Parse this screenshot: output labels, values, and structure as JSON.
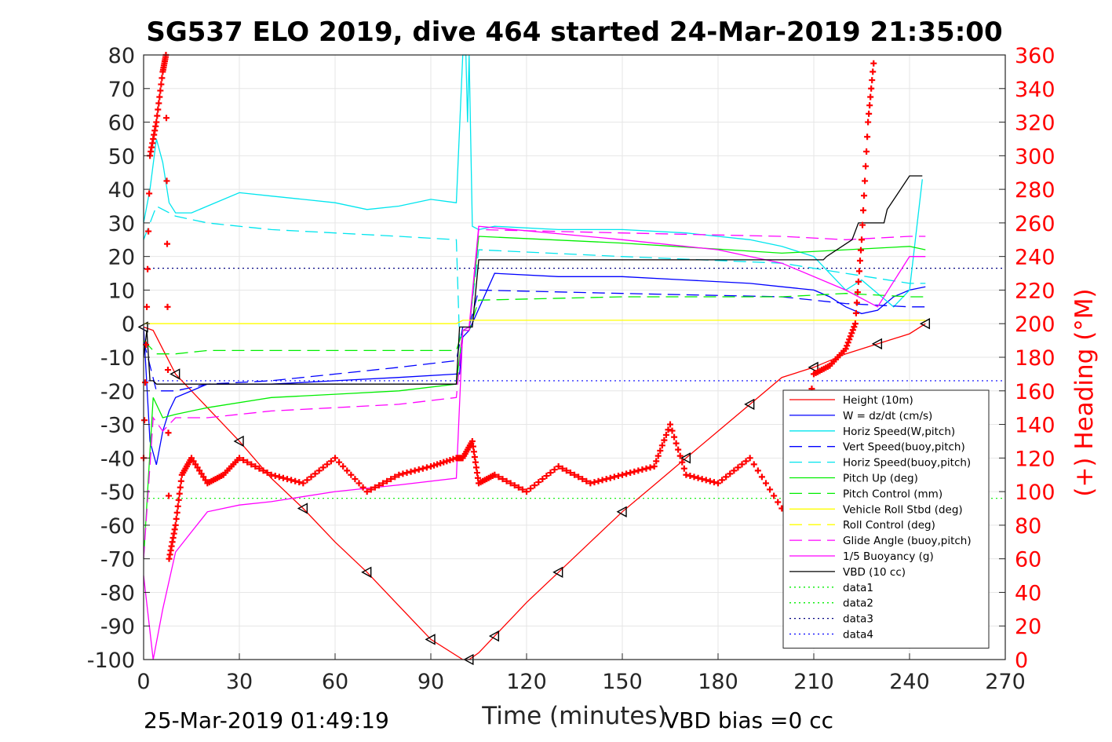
{
  "chart_data": {
    "type": "line",
    "title": "SG537 ELO 2019, dive 464 started 24-Mar-2019 21:35:00",
    "xlabel": "Time (minutes)",
    "ylabel": "",
    "ylabel_right": "(+) Heading (°M)",
    "xlim": [
      0,
      270
    ],
    "ylim": [
      -100,
      80
    ],
    "ylim_right": [
      0,
      360
    ],
    "x_ticks": [
      "0",
      "30",
      "60",
      "90",
      "120",
      "150",
      "180",
      "210",
      "240",
      "270"
    ],
    "y_ticks": [
      "80",
      "70",
      "60",
      "50",
      "40",
      "30",
      "20",
      "10",
      "0",
      "-10",
      "-20",
      "-30",
      "-40",
      "-50",
      "-60",
      "-70",
      "-80",
      "-90",
      "-100"
    ],
    "y_ticks_right": [
      "360",
      "340",
      "320",
      "300",
      "280",
      "260",
      "240",
      "220",
      "200",
      "180",
      "160",
      "140",
      "120",
      "100",
      "80",
      "60",
      "40",
      "20",
      "0"
    ],
    "grid": true,
    "legend_position": "lower-right",
    "footer_left": "25-Mar-2019 01:49:19",
    "footer_right": "VBD bias =0 cc",
    "colors": {
      "height": "#ff0000",
      "w": "#0000ff",
      "hspeed": "#00e5ee",
      "pitch": "#00ee00",
      "roll": "#ffff00",
      "glide": "#ff00ff",
      "vbd": "#000000",
      "heading": "#ff0000",
      "data": "#000080"
    },
    "legend": [
      {
        "name": "Height (10m)",
        "color": "#ff0000",
        "dash": "solid"
      },
      {
        "name": "W = dz/dt (cm/s)",
        "color": "#0000ff",
        "dash": "solid"
      },
      {
        "name": "Horiz Speed(W,pitch)",
        "color": "#00e5ee",
        "dash": "solid"
      },
      {
        "name": "Vert Speed(buoy,pitch)",
        "color": "#0000ff",
        "dash": "dashed"
      },
      {
        "name": "Horiz Speed(buoy,pitch)",
        "color": "#00e5ee",
        "dash": "dashed"
      },
      {
        "name": "Pitch Up (deg)",
        "color": "#00ee00",
        "dash": "solid"
      },
      {
        "name": "Pitch Control (mm)",
        "color": "#00ee00",
        "dash": "dashed"
      },
      {
        "name": "Vehicle Roll Stbd (deg)",
        "color": "#ffff00",
        "dash": "solid"
      },
      {
        "name": "Roll Control (deg)",
        "color": "#ffff00",
        "dash": "dashed"
      },
      {
        "name": "Glide Angle (buoy,pitch)",
        "color": "#ff00ff",
        "dash": "dashed"
      },
      {
        "name": "1/5 Buoyancy (g)",
        "color": "#ff00ff",
        "dash": "solid"
      },
      {
        "name": "VBD (10 cc)",
        "color": "#000000",
        "dash": "solid"
      },
      {
        "name": "data1",
        "color": "#00ee00",
        "dash": "dotted"
      },
      {
        "name": "data2",
        "color": "#00ee00",
        "dash": "dotted"
      },
      {
        "name": "data3",
        "color": "#000080",
        "dash": "dotted"
      },
      {
        "name": "data4",
        "color": "#0000ff",
        "dash": "dotted"
      }
    ],
    "series": [
      {
        "name": "Height (10m)",
        "x": [
          0,
          3,
          10,
          20,
          30,
          40,
          50,
          60,
          70,
          80,
          90,
          100,
          102,
          105,
          110,
          120,
          130,
          140,
          150,
          160,
          170,
          180,
          190,
          200,
          210,
          220,
          230,
          240,
          245
        ],
        "y": [
          -1,
          -2,
          -15,
          -25,
          -35,
          -46,
          -55,
          -65,
          -74,
          -84,
          -94,
          -100,
          -100,
          -98,
          -93,
          -83,
          -74,
          -65,
          -56,
          -48,
          -40,
          -32,
          -24,
          -16,
          -13,
          -9,
          -6,
          -3,
          0
        ]
      },
      {
        "name": "W = dz/dt (cm/s)",
        "x": [
          0,
          2,
          4,
          6,
          8,
          10,
          20,
          40,
          60,
          80,
          98,
          99,
          100,
          102,
          110,
          130,
          150,
          170,
          190,
          200,
          210,
          215,
          220,
          225,
          230,
          235,
          240,
          245
        ],
        "y": [
          -1,
          -35,
          -42,
          -32,
          -26,
          -22,
          -18,
          -18,
          -17,
          -16,
          -15,
          -15,
          -4,
          -2,
          15,
          14,
          14,
          13,
          12,
          11,
          10,
          8,
          5,
          3,
          4,
          8,
          10,
          11
        ]
      },
      {
        "name": "Horiz Speed(W,pitch)",
        "x": [
          0,
          2,
          4,
          6,
          8,
          10,
          15,
          20,
          30,
          40,
          50,
          60,
          70,
          80,
          90,
          98,
          100,
          101,
          101.5,
          102,
          103,
          105,
          110,
          130,
          150,
          170,
          190,
          200,
          210,
          215,
          220,
          225,
          230,
          235,
          240,
          244
        ],
        "y": [
          30,
          40,
          55,
          48,
          36,
          33,
          33,
          35,
          39,
          38,
          37,
          36,
          34,
          35,
          37,
          36,
          80,
          80,
          60,
          80,
          29,
          28,
          29,
          28,
          28,
          27,
          25,
          23,
          20,
          15,
          10,
          13,
          9,
          5,
          10,
          43
        ]
      },
      {
        "name": "Vert Speed(buoy,pitch)",
        "x": [
          0,
          4,
          10,
          20,
          40,
          60,
          80,
          98,
          100,
          102,
          105,
          150,
          200,
          220,
          240,
          245
        ],
        "y": [
          -5,
          -20,
          -20,
          -18,
          -17,
          -15,
          -13,
          -11,
          -1,
          -1,
          10,
          9,
          8,
          6,
          5,
          5
        ]
      },
      {
        "name": "Horiz Speed(buoy,pitch)",
        "x": [
          0,
          4,
          10,
          20,
          40,
          60,
          80,
          98,
          99,
          100,
          102,
          105,
          150,
          200,
          220,
          240,
          245
        ],
        "y": [
          25,
          35,
          32,
          30,
          28,
          27,
          26,
          25,
          -5,
          -2,
          -1,
          22,
          20,
          18,
          15,
          12,
          12
        ]
      },
      {
        "name": "Pitch Up (deg)",
        "x": [
          0,
          3,
          6,
          10,
          20,
          40,
          60,
          80,
          98,
          100,
          102,
          105,
          150,
          200,
          220,
          240,
          245
        ],
        "y": [
          -70,
          -22,
          -28,
          -27,
          -25,
          -22,
          -21,
          -20,
          -18,
          -2,
          -2,
          26,
          24,
          21,
          22,
          23,
          22
        ]
      },
      {
        "name": "Pitch Control (mm)",
        "x": [
          0,
          4,
          10,
          20,
          40,
          60,
          80,
          98,
          100,
          102,
          105,
          150,
          200,
          220,
          240,
          245
        ],
        "y": [
          -5,
          -9,
          -9,
          -8,
          -8,
          -8,
          -8,
          -8,
          -2,
          -2,
          7,
          8,
          8,
          9,
          8,
          8
        ]
      },
      {
        "name": "Glide Angle (buoy,pitch)",
        "x": [
          0,
          3,
          6,
          10,
          20,
          40,
          60,
          80,
          98,
          100,
          102,
          105,
          150,
          200,
          220,
          240,
          245
        ],
        "y": [
          -70,
          -28,
          -32,
          -28,
          -28,
          -26,
          -25,
          -24,
          -22,
          -2,
          -2,
          28,
          27,
          26,
          25,
          26,
          26
        ]
      },
      {
        "name": "1/5 Buoyancy (g)",
        "x": [
          0,
          3,
          6,
          10,
          15,
          20,
          30,
          40,
          60,
          80,
          98,
          100,
          102,
          105,
          150,
          180,
          200,
          220,
          230,
          240,
          245
        ],
        "y": [
          -75,
          -100,
          -85,
          -68,
          -62,
          -56,
          -54,
          -53,
          -50,
          -48,
          -46,
          -2,
          -1,
          29,
          25,
          22,
          18,
          10,
          5,
          20,
          20
        ]
      },
      {
        "name": "VBD (10 cc)",
        "x": [
          0,
          1,
          2,
          3,
          4,
          10,
          50,
          98,
          99,
          100,
          102,
          103,
          105,
          150,
          213,
          214,
          222,
          224,
          232,
          233,
          240,
          244
        ],
        "y": [
          -10,
          -2,
          -17,
          -17,
          -18,
          -18,
          -18,
          -18,
          -1,
          -1,
          -1,
          -1,
          19,
          19,
          19,
          20,
          25,
          30,
          30,
          34,
          44,
          44
        ]
      },
      {
        "name": "Vehicle Roll Stbd (deg)",
        "x": [
          0,
          5,
          10,
          12,
          15,
          20,
          30,
          40,
          50,
          60,
          70,
          80,
          90,
          98,
          100,
          105,
          120,
          150,
          160,
          170,
          190,
          210,
          220,
          230,
          240,
          245
        ],
        "y": [
          0,
          0,
          0,
          0,
          0,
          0,
          0,
          0,
          0,
          0,
          0,
          0,
          0,
          0,
          1,
          1,
          1,
          1,
          1,
          1,
          1,
          1,
          1,
          1,
          1,
          1
        ]
      },
      {
        "name": "(+) Heading (°M)",
        "x": [
          0,
          2,
          4,
          6,
          7,
          8,
          10,
          12,
          15,
          20,
          25,
          30,
          40,
          50,
          60,
          70,
          80,
          90,
          98,
          100,
          103,
          105,
          110,
          120,
          130,
          140,
          150,
          160,
          165,
          170,
          180,
          190,
          200,
          205,
          210,
          215,
          220,
          223,
          225,
          227,
          229
        ],
        "y": [
          120,
          300,
          320,
          350,
          360,
          60,
          80,
          110,
          120,
          105,
          110,
          120,
          110,
          105,
          120,
          100,
          110,
          115,
          120,
          120,
          130,
          105,
          110,
          100,
          115,
          105,
          110,
          115,
          140,
          110,
          105,
          120,
          90,
          100,
          170,
          175,
          185,
          200,
          250,
          320,
          360
        ]
      }
    ],
    "reference_lines": [
      {
        "name": "data3",
        "value": 16.5
      },
      {
        "name": "data4",
        "value": -17
      },
      {
        "name": "data1",
        "value": -52
      }
    ]
  }
}
